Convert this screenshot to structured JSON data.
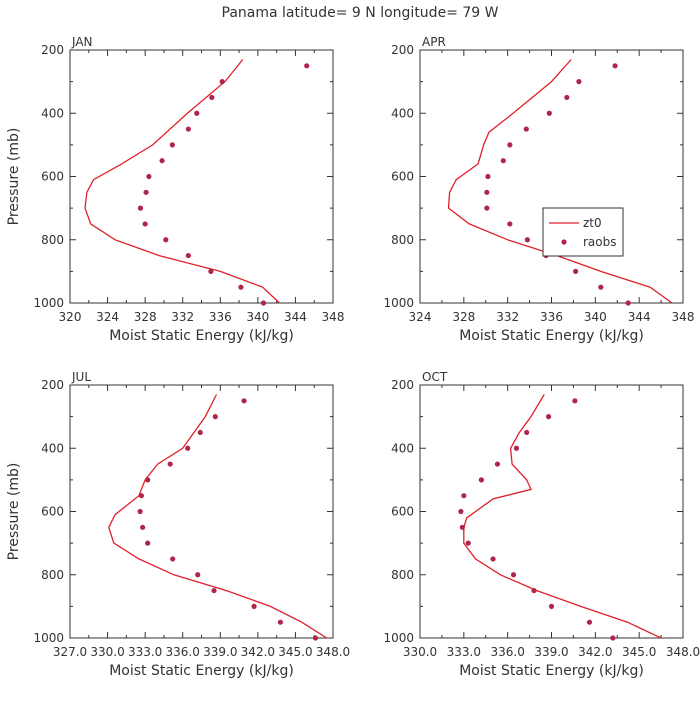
{
  "title": "Panama  latitude= 9 N longitude= 79 W",
  "colors": {
    "model": "#e0202a",
    "obs": "#b0264a",
    "axis": "#333333"
  },
  "legend": {
    "model_label": "zt0",
    "obs_label": "raobs"
  },
  "chart_data": [
    {
      "type": "line",
      "panel_label": "JAN",
      "xlabel": "Moist Static Energy (kJ/kg)",
      "ylabel": "Pressure (mb)",
      "xlim": [
        320,
        348
      ],
      "ylim": [
        200,
        1000
      ],
      "x_tick_values": [
        320,
        324,
        328,
        332,
        336,
        340,
        344,
        348
      ],
      "x_tick_labels": [
        "320",
        "324",
        "328",
        "332",
        "336",
        "340",
        "344",
        "348"
      ],
      "y_tick_values": [
        200,
        400,
        600,
        800,
        1000
      ],
      "y_tick_labels": [
        "200",
        "400",
        "600",
        "800",
        "1000"
      ],
      "model": {
        "name": "zt0",
        "pressure": [
          230,
          300,
          400,
          500,
          560,
          610,
          650,
          700,
          750,
          800,
          850,
          900,
          950,
          1000
        ],
        "mse": [
          338.4,
          336.5,
          332.5,
          328.8,
          325.5,
          322.5,
          321.8,
          321.6,
          322.2,
          324.8,
          329.5,
          336.0,
          340.5,
          342.3
        ]
      },
      "obs": {
        "name": "raobs",
        "pressure": [
          250,
          300,
          350,
          400,
          450,
          500,
          550,
          600,
          650,
          700,
          750,
          800,
          850,
          900,
          950,
          1000
        ],
        "mse": [
          345.2,
          336.2,
          335.1,
          333.5,
          332.6,
          330.9,
          329.8,
          328.4,
          328.1,
          327.5,
          328.0,
          330.2,
          332.6,
          335.0,
          338.2,
          340.6
        ]
      }
    },
    {
      "type": "line",
      "panel_label": "APR",
      "xlabel": "Moist Static Energy (kJ/kg)",
      "ylabel": "Pressure (mb)",
      "xlim": [
        324,
        348
      ],
      "ylim": [
        200,
        1000
      ],
      "x_tick_values": [
        324,
        328,
        332,
        336,
        340,
        344,
        348
      ],
      "x_tick_labels": [
        "324",
        "328",
        "332",
        "336",
        "340",
        "344",
        "348"
      ],
      "y_tick_values": [
        200,
        400,
        600,
        800,
        1000
      ],
      "y_tick_labels": [
        "200",
        "400",
        "600",
        "800",
        "1000"
      ],
      "legend_position": "right-middle",
      "model": {
        "name": "zt0",
        "pressure": [
          230,
          300,
          400,
          460,
          500,
          560,
          610,
          650,
          700,
          750,
          800,
          850,
          900,
          950,
          1000
        ],
        "mse": [
          337.8,
          336.0,
          332.5,
          330.3,
          329.8,
          329.3,
          327.3,
          326.7,
          326.6,
          328.5,
          332.0,
          336.5,
          340.5,
          345.0,
          347.0
        ]
      },
      "obs": {
        "name": "raobs",
        "pressure": [
          250,
          300,
          350,
          400,
          450,
          500,
          550,
          600,
          650,
          700,
          750,
          800,
          850,
          900,
          950,
          1000
        ],
        "mse": [
          341.8,
          338.5,
          337.4,
          335.8,
          333.7,
          332.2,
          331.6,
          330.2,
          330.1,
          330.1,
          332.2,
          333.8,
          335.5,
          338.2,
          340.5,
          343.0
        ]
      }
    },
    {
      "type": "line",
      "panel_label": "JUL",
      "xlabel": "Moist Static Energy (kJ/kg)",
      "ylabel": "Pressure (mb)",
      "xlim": [
        327.0,
        348.0
      ],
      "ylim": [
        200,
        1000
      ],
      "x_tick_values": [
        327.0,
        330.0,
        333.0,
        336.0,
        339.0,
        342.0,
        345.0,
        348.0
      ],
      "x_tick_labels": [
        "327.0",
        "330.0",
        "333.0",
        "336.0",
        "339.0",
        "342.0",
        "345.0",
        "348.0"
      ],
      "y_tick_values": [
        200,
        400,
        600,
        800,
        1000
      ],
      "y_tick_labels": [
        "200",
        "400",
        "600",
        "800",
        "1000"
      ],
      "model": {
        "name": "zt0",
        "pressure": [
          230,
          300,
          400,
          450,
          500,
          550,
          610,
          650,
          700,
          750,
          800,
          850,
          900,
          950,
          1000
        ],
        "mse": [
          338.7,
          337.8,
          336.0,
          334.0,
          333.0,
          332.5,
          330.6,
          330.1,
          330.5,
          332.5,
          335.3,
          339.5,
          343.0,
          345.5,
          347.5
        ]
      },
      "obs": {
        "name": "raobs",
        "pressure": [
          250,
          300,
          350,
          400,
          450,
          500,
          550,
          600,
          650,
          700,
          750,
          800,
          850,
          900,
          950,
          1000
        ],
        "mse": [
          340.9,
          338.6,
          337.4,
          336.4,
          335.0,
          333.2,
          332.7,
          332.6,
          332.8,
          333.2,
          335.2,
          337.2,
          338.5,
          341.7,
          343.8,
          346.6
        ]
      }
    },
    {
      "type": "line",
      "panel_label": "OCT",
      "xlabel": "Moist Static Energy (kJ/kg)",
      "ylabel": "Pressure (mb)",
      "xlim": [
        330.0,
        348.0
      ],
      "ylim": [
        200,
        1000
      ],
      "x_tick_values": [
        330.0,
        333.0,
        336.0,
        339.0,
        342.0,
        345.0,
        348.0
      ],
      "x_tick_labels": [
        "330.0",
        "333.0",
        "336.0",
        "339.0",
        "342.0",
        "345.0",
        "348.0"
      ],
      "y_tick_values": [
        200,
        400,
        600,
        800,
        1000
      ],
      "y_tick_labels": [
        "200",
        "400",
        "600",
        "800",
        "1000"
      ],
      "model": {
        "name": "zt0",
        "pressure": [
          230,
          300,
          350,
          400,
          450,
          500,
          530,
          560,
          620,
          650,
          700,
          750,
          800,
          850,
          900,
          950,
          1000
        ],
        "mse": [
          338.5,
          337.6,
          336.8,
          336.2,
          336.3,
          337.3,
          337.6,
          335.0,
          333.2,
          333.0,
          333.0,
          333.8,
          335.5,
          338.0,
          341.0,
          344.2,
          346.5
        ]
      },
      "obs": {
        "name": "raobs",
        "pressure": [
          250,
          300,
          350,
          400,
          450,
          500,
          550,
          600,
          650,
          700,
          750,
          800,
          850,
          900,
          950,
          1000
        ],
        "mse": [
          340.6,
          338.8,
          337.3,
          336.6,
          335.3,
          334.2,
          333.0,
          332.8,
          332.9,
          333.3,
          335.0,
          336.4,
          337.8,
          339.0,
          341.6,
          343.2
        ]
      }
    }
  ]
}
